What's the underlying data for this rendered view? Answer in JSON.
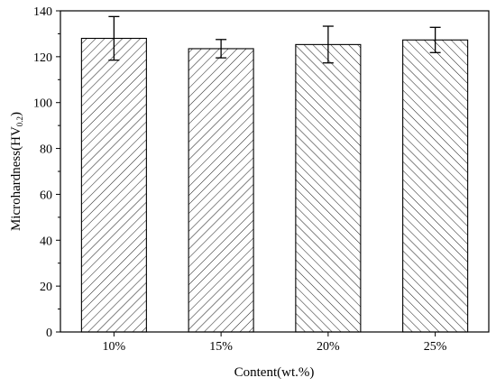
{
  "chart_data": {
    "type": "bar",
    "categories": [
      "10%",
      "15%",
      "20%",
      "25%"
    ],
    "values": [
      128,
      123.5,
      125.3,
      127.3
    ],
    "errors": [
      9.5,
      4,
      8,
      5.5
    ],
    "ylim": [
      0,
      140
    ],
    "yticks": [
      0,
      20,
      40,
      60,
      80,
      100,
      120,
      140
    ],
    "ylabel": "Microhardness(HV",
    "ylabel_sub": "0.2",
    "ylabel_close": ")",
    "xlabel": "Content(wt.%)",
    "hatch": [
      "forward",
      "forward",
      "backward",
      "backward"
    ],
    "grid": false,
    "legend": "none"
  }
}
